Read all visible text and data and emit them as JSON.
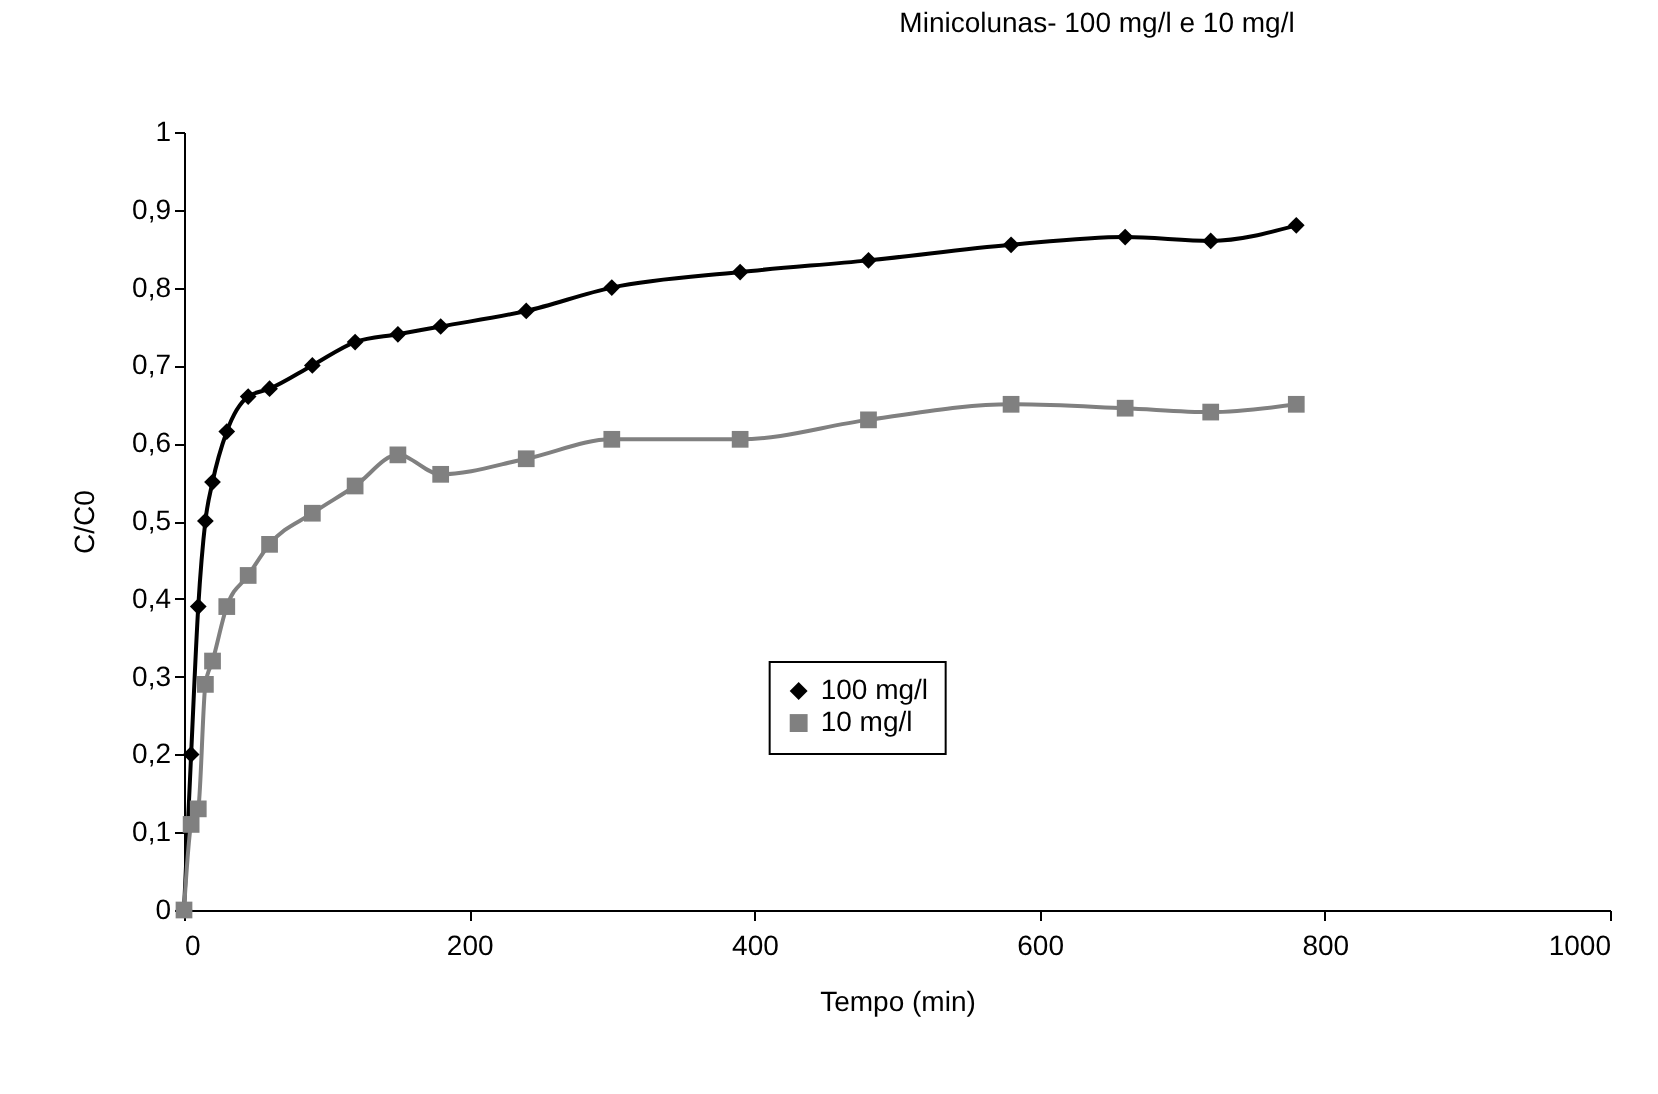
{
  "chart_data": {
    "type": "line",
    "title": "Minicolunas- 100 mg/l e 10 mg/l",
    "xlabel": "Tempo (min)",
    "ylabel": "C/C0",
    "xlim": [
      0,
      1000
    ],
    "xticks": [
      0,
      200,
      400,
      600,
      800,
      1000
    ],
    "ylim": [
      0,
      1
    ],
    "yticks": [
      0,
      {
        "value": 0.1,
        "label": "0,1"
      },
      {
        "value": 0.2,
        "label": "0,2"
      },
      {
        "value": 0.3,
        "label": "0,3"
      },
      {
        "value": 0.4,
        "label": "0,4"
      },
      {
        "value": 0.5,
        "label": "0,5"
      },
      {
        "value": 0.6,
        "label": "0,6"
      },
      {
        "value": 0.7,
        "label": "0,7"
      },
      {
        "value": 0.8,
        "label": "0,8"
      },
      {
        "value": 0.9,
        "label": "0,9"
      },
      1
    ],
    "legend": "bottom",
    "grid": false,
    "series": [
      {
        "name": "100 mg/l",
        "color": "#000000",
        "marker": "diamond",
        "x": [
          0,
          5,
          10,
          15,
          20,
          30,
          45,
          60,
          90,
          120,
          150,
          180,
          240,
          300,
          390,
          480,
          580,
          660,
          720,
          780
        ],
        "values": [
          0,
          0.2,
          0.39,
          0.5,
          0.55,
          0.615,
          0.66,
          0.67,
          0.7,
          0.73,
          0.74,
          0.75,
          0.77,
          0.8,
          0.82,
          0.835,
          0.855,
          0.865,
          0.86,
          0.88
        ]
      },
      {
        "name": "10 mg/l",
        "color": "#808080",
        "marker": "square",
        "x": [
          0,
          5,
          10,
          15,
          20,
          30,
          45,
          60,
          90,
          120,
          150,
          180,
          240,
          300,
          390,
          480,
          580,
          660,
          720,
          780
        ],
        "values": [
          0,
          0.11,
          0.13,
          0.29,
          0.32,
          0.39,
          0.43,
          0.47,
          0.51,
          0.545,
          0.585,
          0.56,
          0.58,
          0.605,
          0.605,
          0.63,
          0.65,
          0.645,
          0.64,
          0.65
        ]
      }
    ]
  }
}
